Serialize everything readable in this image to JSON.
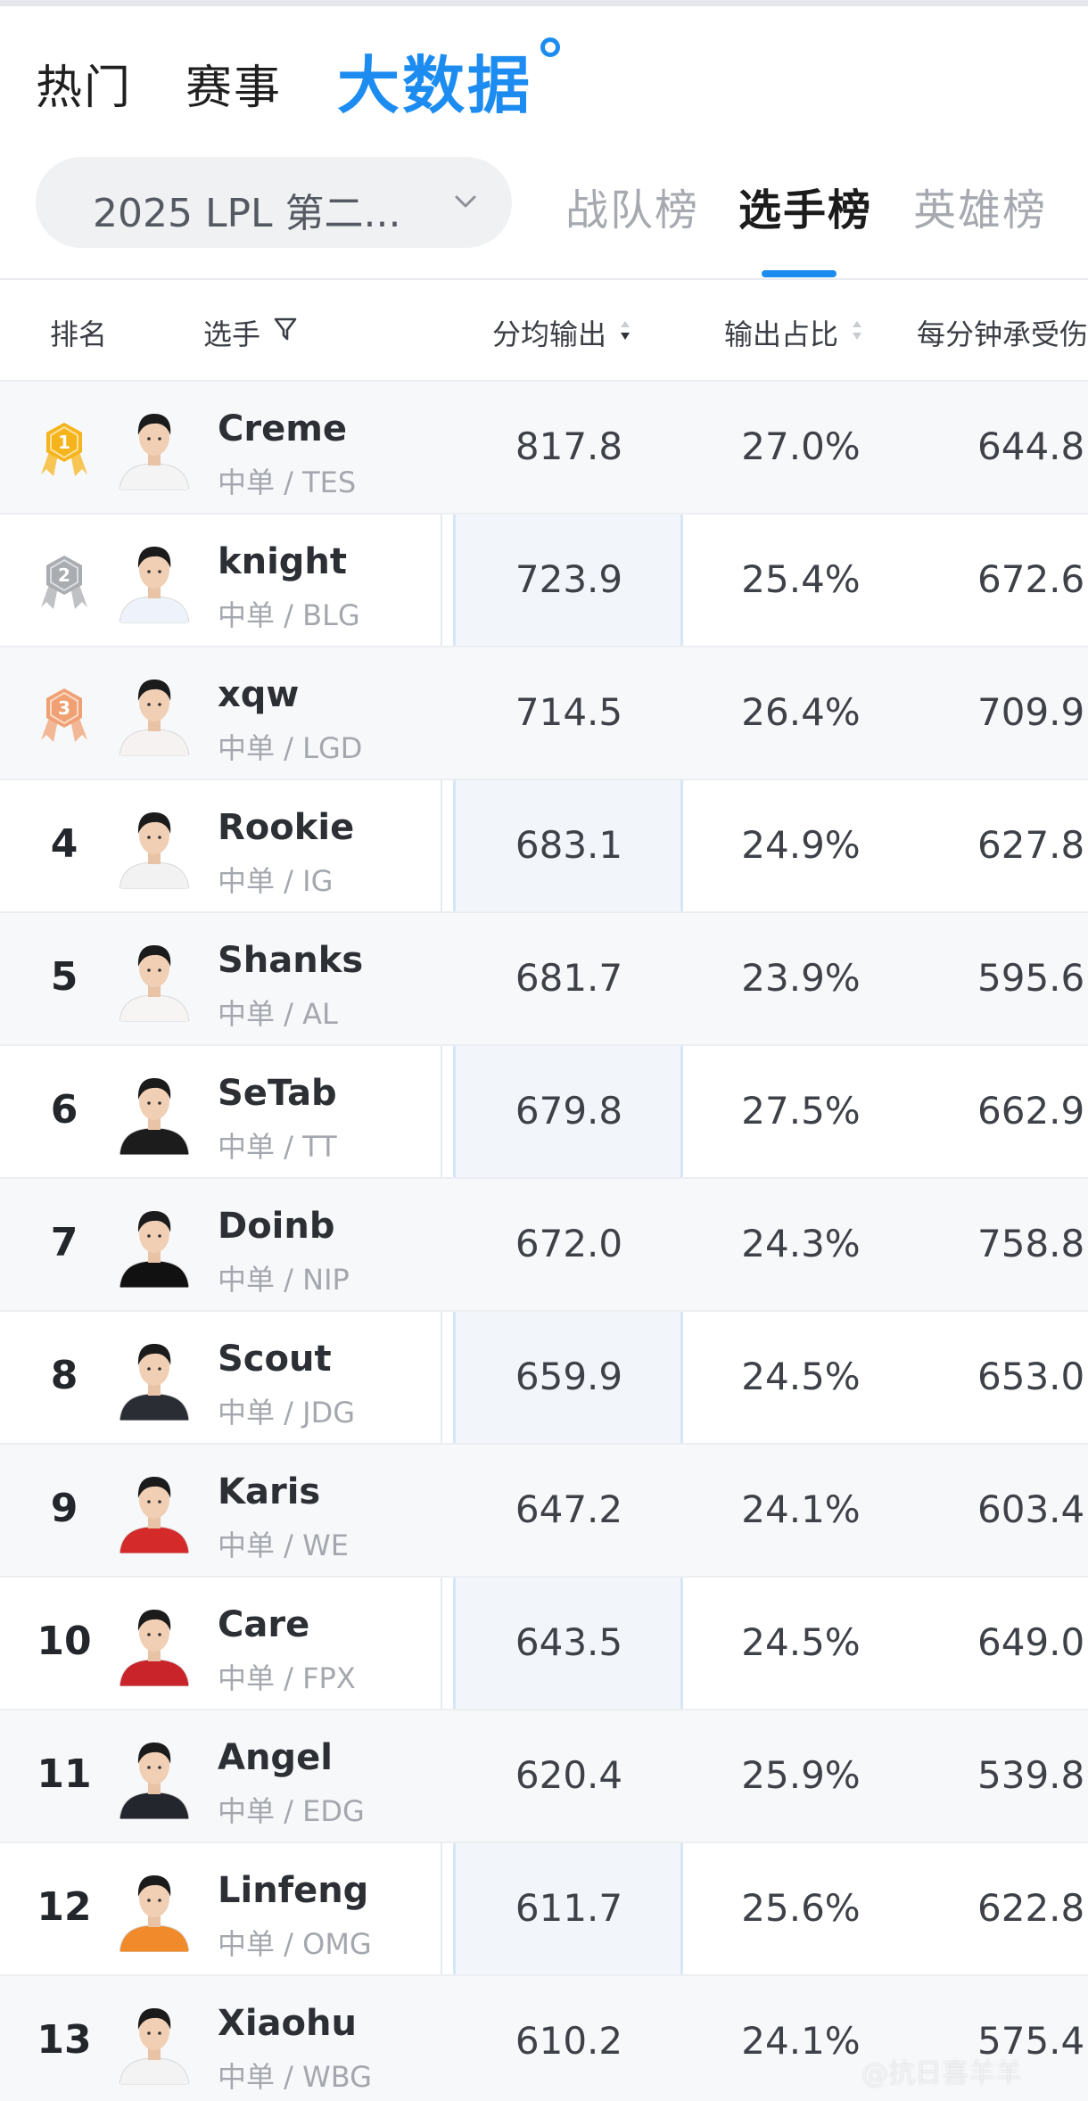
{
  "nav": {
    "items": [
      "热门",
      "赛事"
    ],
    "active": "大数据"
  },
  "season": {
    "label": "2025 LPL 第二..."
  },
  "tabs": [
    "战队榜",
    "选手榜",
    "英雄榜"
  ],
  "table": {
    "headers": {
      "rank": "排名",
      "player": "选手",
      "damage": "分均输出",
      "share": "输出占比",
      "taken": "每分钟承受伤"
    },
    "rows": [
      {
        "rank": "1",
        "medal": "gold",
        "name": "Creme",
        "team": "中单 / TES",
        "damage": "817.8",
        "share": "27.0%",
        "taken": "644.8"
      },
      {
        "rank": "2",
        "medal": "silver",
        "name": "knight",
        "team": "中单 / BLG",
        "damage": "723.9",
        "share": "25.4%",
        "taken": "672.6"
      },
      {
        "rank": "3",
        "medal": "bronze",
        "name": "xqw",
        "team": "中单 / LGD",
        "damage": "714.5",
        "share": "26.4%",
        "taken": "709.9"
      },
      {
        "rank": "4",
        "name": "Rookie",
        "team": "中单 / IG",
        "damage": "683.1",
        "share": "24.9%",
        "taken": "627.8"
      },
      {
        "rank": "5",
        "name": "Shanks",
        "team": "中单 / AL",
        "damage": "681.7",
        "share": "23.9%",
        "taken": "595.6"
      },
      {
        "rank": "6",
        "name": "SeTab",
        "team": "中单 / TT",
        "damage": "679.8",
        "share": "27.5%",
        "taken": "662.9"
      },
      {
        "rank": "7",
        "name": "Doinb",
        "team": "中单 / NIP",
        "damage": "672.0",
        "share": "24.3%",
        "taken": "758.8"
      },
      {
        "rank": "8",
        "name": "Scout",
        "team": "中单 / JDG",
        "damage": "659.9",
        "share": "24.5%",
        "taken": "653.0"
      },
      {
        "rank": "9",
        "name": "Karis",
        "team": "中单 / WE",
        "damage": "647.2",
        "share": "24.1%",
        "taken": "603.4"
      },
      {
        "rank": "10",
        "name": "Care",
        "team": "中单 / FPX",
        "damage": "643.5",
        "share": "24.5%",
        "taken": "649.0"
      },
      {
        "rank": "11",
        "name": "Angel",
        "team": "中单 / EDG",
        "damage": "620.4",
        "share": "25.9%",
        "taken": "539.8"
      },
      {
        "rank": "12",
        "name": "Linfeng",
        "team": "中单 / OMG",
        "damage": "611.7",
        "share": "25.6%",
        "taken": "622.8"
      },
      {
        "rank": "13",
        "name": "Xiaohu",
        "team": "中单 / WBG",
        "damage": "610.2",
        "share": "24.1%",
        "taken": "575.4"
      }
    ]
  },
  "jerseys": [
    "#f4f4f4",
    "#eef3fb",
    "#f6f2f2",
    "#f2f2f2",
    "#f7f4f4",
    "#1c1c1c",
    "#111111",
    "#2a2d33",
    "#d42a2a",
    "#c8242a",
    "#23262d",
    "#f08a2a",
    "#f3f3f3"
  ],
  "colors": {
    "accent": "#1d8cf0",
    "gold": "#f5b41b",
    "silver": "#a9acb1",
    "bronze": "#f0a173"
  }
}
